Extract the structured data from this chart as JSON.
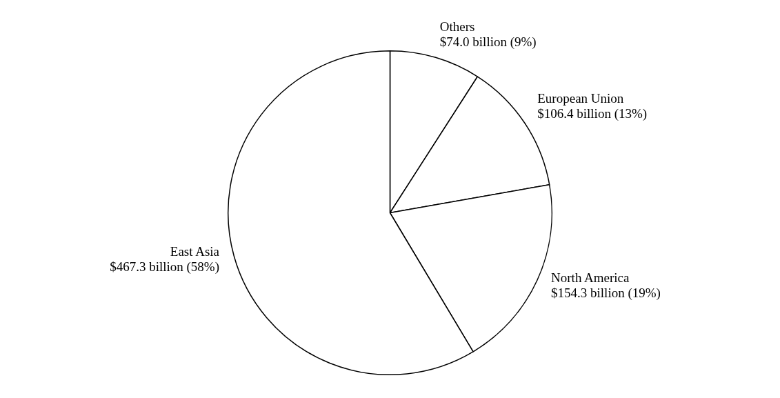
{
  "chart_data": {
    "type": "pie",
    "categories": [
      "Others",
      "European Union",
      "North America",
      "East Asia"
    ],
    "values": [
      9,
      13,
      19,
      58
    ],
    "value_labels": [
      "$74.0 billion (9%)",
      "$106.4 billion (13%)",
      "$154.3 billion (19%)",
      "$467.3 billion (58%)"
    ],
    "colors": [
      "#ffffff",
      "#ffffff",
      "#ffffff",
      "#ffffff"
    ],
    "legend": false
  }
}
